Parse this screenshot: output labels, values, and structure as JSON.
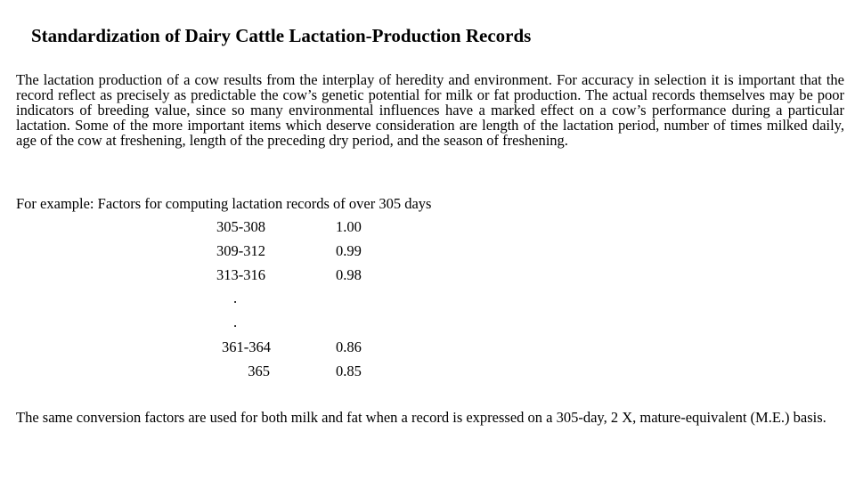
{
  "title": "Standardization of Dairy Cattle Lactation-Production Records",
  "intro_paragraph": "The lactation production of a cow results from the interplay of heredity and environment. For accuracy in selection it is important that the record reflect as precisely as predictable the cow’s genetic potential for milk or fat production. The actual records themselves may be poor indicators of breeding value, since so many environmental influences have a marked effect on a cow’s performance during a particular lactation. Some of the more important items which deserve consideration are length of the lactation period, number of times milked daily, age of the cow at freshening, length of the preceding dry period, and the season of freshening.",
  "example_heading": "For example: Factors for computing lactation records of over 305 days",
  "factors": [
    {
      "range": "305-308",
      "factor": "1.00"
    },
    {
      "range": "309-312",
      "factor": "0.99"
    },
    {
      "range": "313-316",
      "factor": "0.98"
    },
    {
      "range": "361-364",
      "factor": "0.86"
    },
    {
      "range": "365",
      "factor": "0.85"
    }
  ],
  "ellipsis": [
    ".",
    "."
  ],
  "closing_paragraph": "The same conversion factors are used for both milk and fat when a record is expressed on a 305-day, 2 X, mature-equivalent (M.E.) basis."
}
